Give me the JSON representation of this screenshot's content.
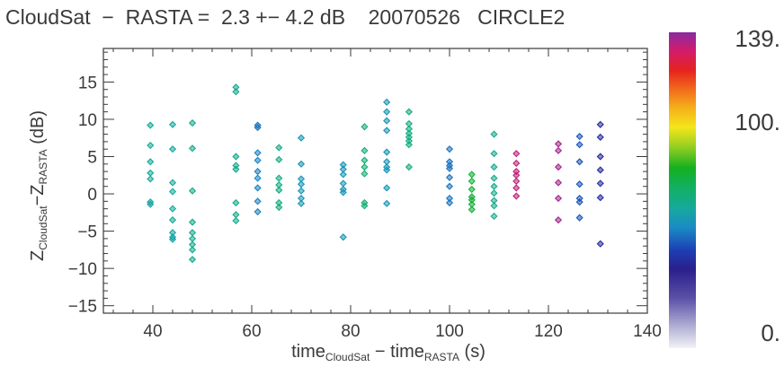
{
  "title": {
    "part1": "CloudSat",
    "part2": "−",
    "part3": "RASTA =",
    "part4": "2.3 +− 4.2 dB",
    "part5": "20070526",
    "part6": "CIRCLE2"
  },
  "chart_data": {
    "type": "scatter",
    "title": "CloudSat − RASTA = 2.3 +− 4.2 dB 20070526 CIRCLE2",
    "xlabel": {
      "main": "time",
      "sub1": "CloudSat",
      "mid": " − time",
      "sub2": "RASTA",
      "tail": " (s)"
    },
    "ylabel": {
      "main": "Z",
      "sub1": "CloudSat",
      "mid": "−Z",
      "sub2": "RASTA",
      "tail": " (dB)"
    },
    "xlim": [
      30,
      140
    ],
    "ylim": [
      -16,
      19.5
    ],
    "xticks": [
      40,
      60,
      80,
      100,
      120,
      140
    ],
    "xtick_labels": [
      "40",
      "60",
      "80",
      "100",
      "120",
      "140"
    ],
    "yticks": [
      -15,
      -10,
      -5,
      0,
      5,
      10,
      15
    ],
    "ytick_labels": [
      "−15",
      "−10",
      "−5",
      "0",
      "5",
      "10",
      "15"
    ],
    "grid": false,
    "colorbar": {
      "labels": [
        "139.",
        "100.",
        "0."
      ],
      "values": [
        139,
        100,
        0
      ],
      "range": [
        0,
        139
      ]
    },
    "points": [
      {
        "x": 39.5,
        "y": 9.2,
        "c": 62
      },
      {
        "x": 39.5,
        "y": 6.5,
        "c": 62
      },
      {
        "x": 39.5,
        "y": 4.3,
        "c": 62
      },
      {
        "x": 39.5,
        "y": 2.8,
        "c": 62
      },
      {
        "x": 39.5,
        "y": 2.0,
        "c": 62
      },
      {
        "x": 39.5,
        "y": -1.1,
        "c": 60
      },
      {
        "x": 39.5,
        "y": -1.4,
        "c": 60
      },
      {
        "x": 44.0,
        "y": 9.3,
        "c": 62
      },
      {
        "x": 44.0,
        "y": 6.0,
        "c": 62
      },
      {
        "x": 44.0,
        "y": 1.5,
        "c": 62
      },
      {
        "x": 44.0,
        "y": 0.3,
        "c": 62
      },
      {
        "x": 44.0,
        "y": -2.0,
        "c": 62
      },
      {
        "x": 44.0,
        "y": -3.5,
        "c": 62
      },
      {
        "x": 44.0,
        "y": -5.2,
        "c": 60
      },
      {
        "x": 44.0,
        "y": -5.8,
        "c": 60
      },
      {
        "x": 44.0,
        "y": -6.1,
        "c": 60
      },
      {
        "x": 48.0,
        "y": 9.5,
        "c": 64
      },
      {
        "x": 48.0,
        "y": 6.1,
        "c": 64
      },
      {
        "x": 48.0,
        "y": 0.4,
        "c": 64
      },
      {
        "x": 48.0,
        "y": -3.8,
        "c": 64
      },
      {
        "x": 48.0,
        "y": -5.2,
        "c": 64
      },
      {
        "x": 48.0,
        "y": -6.0,
        "c": 64
      },
      {
        "x": 48.0,
        "y": -6.8,
        "c": 64
      },
      {
        "x": 48.0,
        "y": -7.5,
        "c": 64
      },
      {
        "x": 48.0,
        "y": -8.8,
        "c": 64
      },
      {
        "x": 56.8,
        "y": 14.3,
        "c": 64
      },
      {
        "x": 56.8,
        "y": 13.7,
        "c": 64
      },
      {
        "x": 56.8,
        "y": 5.0,
        "c": 64
      },
      {
        "x": 56.8,
        "y": 3.8,
        "c": 64
      },
      {
        "x": 56.8,
        "y": 3.3,
        "c": 64
      },
      {
        "x": 56.8,
        "y": -1.2,
        "c": 64
      },
      {
        "x": 56.8,
        "y": -2.8,
        "c": 64
      },
      {
        "x": 56.8,
        "y": -3.6,
        "c": 64
      },
      {
        "x": 61.2,
        "y": 9.2,
        "c": 50
      },
      {
        "x": 61.2,
        "y": 8.9,
        "c": 50
      },
      {
        "x": 61.2,
        "y": 5.5,
        "c": 52
      },
      {
        "x": 61.2,
        "y": 4.5,
        "c": 52
      },
      {
        "x": 61.2,
        "y": 3.0,
        "c": 52
      },
      {
        "x": 61.2,
        "y": 2.1,
        "c": 52
      },
      {
        "x": 61.2,
        "y": 0.8,
        "c": 52
      },
      {
        "x": 61.2,
        "y": -1.0,
        "c": 52
      },
      {
        "x": 61.2,
        "y": -2.4,
        "c": 52
      },
      {
        "x": 65.5,
        "y": 6.2,
        "c": 66
      },
      {
        "x": 65.5,
        "y": 4.6,
        "c": 66
      },
      {
        "x": 65.5,
        "y": 2.1,
        "c": 66
      },
      {
        "x": 65.5,
        "y": 1.2,
        "c": 66
      },
      {
        "x": 65.5,
        "y": 0.5,
        "c": 66
      },
      {
        "x": 65.5,
        "y": -1.2,
        "c": 66
      },
      {
        "x": 65.5,
        "y": -1.8,
        "c": 66
      },
      {
        "x": 70.0,
        "y": 7.5,
        "c": 56
      },
      {
        "x": 70.0,
        "y": 4.0,
        "c": 56
      },
      {
        "x": 70.0,
        "y": 2.0,
        "c": 56
      },
      {
        "x": 70.0,
        "y": 1.3,
        "c": 56
      },
      {
        "x": 70.0,
        "y": 0.4,
        "c": 56
      },
      {
        "x": 70.0,
        "y": -0.6,
        "c": 56
      },
      {
        "x": 70.0,
        "y": -1.3,
        "c": 56
      },
      {
        "x": 78.5,
        "y": 3.9,
        "c": 56
      },
      {
        "x": 78.5,
        "y": 3.3,
        "c": 56
      },
      {
        "x": 78.5,
        "y": 2.6,
        "c": 56
      },
      {
        "x": 78.5,
        "y": 1.4,
        "c": 56
      },
      {
        "x": 78.5,
        "y": 0.6,
        "c": 56
      },
      {
        "x": 78.5,
        "y": 0.2,
        "c": 56
      },
      {
        "x": 78.5,
        "y": -5.8,
        "c": 56
      },
      {
        "x": 82.8,
        "y": 9.0,
        "c": 68
      },
      {
        "x": 82.8,
        "y": 5.8,
        "c": 68
      },
      {
        "x": 82.8,
        "y": 4.5,
        "c": 68
      },
      {
        "x": 82.8,
        "y": 3.6,
        "c": 68
      },
      {
        "x": 82.8,
        "y": 2.7,
        "c": 68
      },
      {
        "x": 82.8,
        "y": -1.2,
        "c": 68
      },
      {
        "x": 82.8,
        "y": -1.6,
        "c": 68
      },
      {
        "x": 87.3,
        "y": 12.3,
        "c": 56
      },
      {
        "x": 87.3,
        "y": 11.0,
        "c": 56
      },
      {
        "x": 87.3,
        "y": 9.8,
        "c": 56
      },
      {
        "x": 87.3,
        "y": 8.5,
        "c": 56
      },
      {
        "x": 87.3,
        "y": 5.6,
        "c": 56
      },
      {
        "x": 87.3,
        "y": 4.3,
        "c": 56
      },
      {
        "x": 87.3,
        "y": 3.6,
        "c": 56
      },
      {
        "x": 87.3,
        "y": 3.2,
        "c": 56
      },
      {
        "x": 87.3,
        "y": 0.8,
        "c": 56
      },
      {
        "x": 87.3,
        "y": -1.3,
        "c": 56
      },
      {
        "x": 91.8,
        "y": 11.0,
        "c": 66
      },
      {
        "x": 91.8,
        "y": 9.4,
        "c": 66
      },
      {
        "x": 91.8,
        "y": 8.7,
        "c": 66
      },
      {
        "x": 91.8,
        "y": 8.1,
        "c": 66
      },
      {
        "x": 91.8,
        "y": 7.6,
        "c": 66
      },
      {
        "x": 91.8,
        "y": 7.1,
        "c": 66
      },
      {
        "x": 91.8,
        "y": 6.6,
        "c": 66
      },
      {
        "x": 91.8,
        "y": 3.6,
        "c": 66
      },
      {
        "x": 100.0,
        "y": 6.0,
        "c": 50
      },
      {
        "x": 100.0,
        "y": 4.3,
        "c": 50
      },
      {
        "x": 100.0,
        "y": 3.8,
        "c": 50
      },
      {
        "x": 100.0,
        "y": 3.4,
        "c": 50
      },
      {
        "x": 100.0,
        "y": 2.2,
        "c": 50
      },
      {
        "x": 100.0,
        "y": 1.0,
        "c": 50
      },
      {
        "x": 100.0,
        "y": -0.6,
        "c": 50
      },
      {
        "x": 100.0,
        "y": -1.2,
        "c": 50
      },
      {
        "x": 104.5,
        "y": 2.6,
        "c": 76
      },
      {
        "x": 104.5,
        "y": 1.7,
        "c": 76
      },
      {
        "x": 104.5,
        "y": 0.6,
        "c": 76
      },
      {
        "x": 104.5,
        "y": -0.4,
        "c": 76
      },
      {
        "x": 104.5,
        "y": -0.8,
        "c": 76
      },
      {
        "x": 104.5,
        "y": -1.4,
        "c": 76
      },
      {
        "x": 104.5,
        "y": -2.1,
        "c": 76
      },
      {
        "x": 109.0,
        "y": 8.0,
        "c": 64
      },
      {
        "x": 109.0,
        "y": 5.4,
        "c": 64
      },
      {
        "x": 109.0,
        "y": 3.6,
        "c": 64
      },
      {
        "x": 109.0,
        "y": 2.1,
        "c": 64
      },
      {
        "x": 109.0,
        "y": 1.0,
        "c": 64
      },
      {
        "x": 109.0,
        "y": 0.1,
        "c": 64
      },
      {
        "x": 109.0,
        "y": -0.9,
        "c": 64
      },
      {
        "x": 109.0,
        "y": -1.6,
        "c": 64
      },
      {
        "x": 109.0,
        "y": -3.0,
        "c": 64
      },
      {
        "x": 113.5,
        "y": 5.4,
        "c": 133
      },
      {
        "x": 113.5,
        "y": 4.1,
        "c": 133
      },
      {
        "x": 113.5,
        "y": 3.0,
        "c": 133
      },
      {
        "x": 113.5,
        "y": 2.5,
        "c": 133
      },
      {
        "x": 113.5,
        "y": 1.7,
        "c": 133
      },
      {
        "x": 113.5,
        "y": 0.8,
        "c": 133
      },
      {
        "x": 113.5,
        "y": -0.3,
        "c": 133
      },
      {
        "x": 122.0,
        "y": 6.7,
        "c": 136
      },
      {
        "x": 122.0,
        "y": 5.8,
        "c": 136
      },
      {
        "x": 122.0,
        "y": 3.6,
        "c": 136
      },
      {
        "x": 122.0,
        "y": 1.5,
        "c": 136
      },
      {
        "x": 122.0,
        "y": -0.6,
        "c": 136
      },
      {
        "x": 122.0,
        "y": -3.5,
        "c": 136
      },
      {
        "x": 126.3,
        "y": 7.7,
        "c": 46
      },
      {
        "x": 126.3,
        "y": 6.6,
        "c": 46
      },
      {
        "x": 126.3,
        "y": 4.3,
        "c": 46
      },
      {
        "x": 126.3,
        "y": 1.3,
        "c": 46
      },
      {
        "x": 126.3,
        "y": -0.6,
        "c": 46
      },
      {
        "x": 126.3,
        "y": -1.1,
        "c": 46
      },
      {
        "x": 126.3,
        "y": -3.2,
        "c": 46
      },
      {
        "x": 130.5,
        "y": 9.3,
        "c": 38
      },
      {
        "x": 130.5,
        "y": 7.6,
        "c": 38
      },
      {
        "x": 130.5,
        "y": 5.0,
        "c": 38
      },
      {
        "x": 130.5,
        "y": 3.2,
        "c": 38
      },
      {
        "x": 130.5,
        "y": 1.4,
        "c": 38
      },
      {
        "x": 130.5,
        "y": -0.5,
        "c": 38
      },
      {
        "x": 130.5,
        "y": -6.7,
        "c": 38
      }
    ]
  }
}
